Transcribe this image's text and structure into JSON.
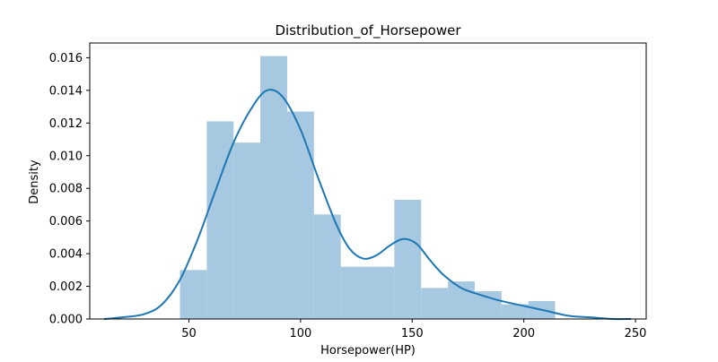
{
  "chart_data": {
    "type": "histogram",
    "title": "Distribution_of_Horsepower",
    "xlabel": "Horsepower(HP)",
    "ylabel": "Density",
    "xlim": [
      5.6,
      254.8
    ],
    "ylim": [
      0,
      0.0169
    ],
    "xticks": [
      50,
      100,
      150,
      200,
      250
    ],
    "yticks": [
      0.0,
      0.002,
      0.004,
      0.006,
      0.008,
      0.01,
      0.012,
      0.014,
      0.016
    ],
    "ytick_labels": [
      "0.000",
      "0.002",
      "0.004",
      "0.006",
      "0.008",
      "0.010",
      "0.012",
      "0.014",
      "0.016"
    ],
    "bins": [
      {
        "x0": 46,
        "x1": 58,
        "density": 0.003
      },
      {
        "x0": 58,
        "x1": 70,
        "density": 0.0121
      },
      {
        "x0": 70,
        "x1": 82,
        "density": 0.0108
      },
      {
        "x0": 82,
        "x1": 94,
        "density": 0.0161
      },
      {
        "x0": 94,
        "x1": 106,
        "density": 0.0127
      },
      {
        "x0": 106,
        "x1": 118,
        "density": 0.0064
      },
      {
        "x0": 118,
        "x1": 130,
        "density": 0.0032
      },
      {
        "x0": 130,
        "x1": 142,
        "density": 0.0032
      },
      {
        "x0": 142,
        "x1": 154,
        "density": 0.0073
      },
      {
        "x0": 154,
        "x1": 166,
        "density": 0.0019
      },
      {
        "x0": 166,
        "x1": 178,
        "density": 0.0023
      },
      {
        "x0": 178,
        "x1": 190,
        "density": 0.0017
      },
      {
        "x0": 190,
        "x1": 202,
        "density": 0.0009
      },
      {
        "x0": 202,
        "x1": 214,
        "density": 0.0011
      }
    ],
    "kde": {
      "x": [
        12,
        20,
        30,
        38,
        46,
        54,
        62,
        70,
        78,
        85,
        92,
        100,
        108,
        116,
        122,
        128,
        134,
        140,
        146,
        152,
        158,
        164,
        172,
        180,
        190,
        200,
        210,
        220,
        230,
        240,
        248
      ],
      "y": [
        0.0,
        0.0001,
        0.0003,
        0.0009,
        0.0024,
        0.0049,
        0.0079,
        0.0108,
        0.0129,
        0.014,
        0.0136,
        0.0116,
        0.0086,
        0.0058,
        0.0043,
        0.0037,
        0.0039,
        0.0045,
        0.0049,
        0.0046,
        0.0036,
        0.0027,
        0.0019,
        0.0015,
        0.0011,
        0.0008,
        0.0005,
        0.0002,
        0.0001,
        0.0,
        0.0
      ]
    },
    "colors": {
      "bar": "#a6c8e0",
      "line": "#1f77b4",
      "axis": "#000000"
    },
    "grid": false
  }
}
